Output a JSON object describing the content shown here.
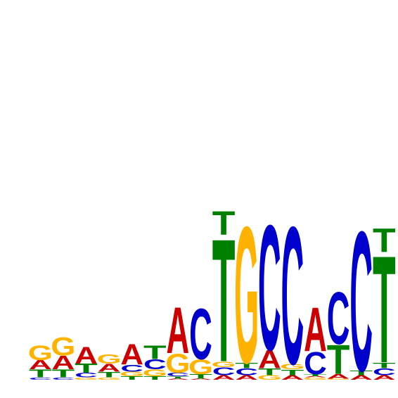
{
  "chart_data": {
    "type": "sequence-logo",
    "title": "",
    "xlabel": "",
    "ylabel": "",
    "ylim": [
      0,
      2
    ],
    "colors": {
      "A": "#CC0000",
      "C": "#0000CC",
      "G": "#FFB300",
      "T": "#008000"
    },
    "positions": [
      [
        {
          "b": "C",
          "h": 0.02
        },
        {
          "b": "T",
          "h": 0.07
        },
        {
          "b": "A",
          "h": 0.08
        },
        {
          "b": "G",
          "h": 0.13
        }
      ],
      [
        {
          "b": "C",
          "h": 0.02
        },
        {
          "b": "T",
          "h": 0.07
        },
        {
          "b": "A",
          "h": 0.12
        },
        {
          "b": "G",
          "h": 0.16
        }
      ],
      [
        {
          "b": "G",
          "h": 0.02
        },
        {
          "b": "C",
          "h": 0.04
        },
        {
          "b": "T",
          "h": 0.08
        },
        {
          "b": "A",
          "h": 0.15
        }
      ],
      [
        {
          "b": "G",
          "h": 0.02
        },
        {
          "b": "T",
          "h": 0.05
        },
        {
          "b": "A",
          "h": 0.07
        },
        {
          "b": "G",
          "h": 0.08
        }
      ],
      [
        {
          "b": "T",
          "h": 0.03
        },
        {
          "b": "G",
          "h": 0.04
        },
        {
          "b": "C",
          "h": 0.06
        },
        {
          "b": "A",
          "h": 0.18
        }
      ],
      [
        {
          "b": "T",
          "h": 0.03
        },
        {
          "b": "G",
          "h": 0.06
        },
        {
          "b": "C",
          "h": 0.09
        },
        {
          "b": "T",
          "h": 0.12
        }
      ],
      [
        {
          "b": "A",
          "h": 0.01
        },
        {
          "b": "T",
          "h": 0.02
        },
        {
          "b": "C",
          "h": 0.03
        },
        {
          "b": "G",
          "h": 0.17
        },
        {
          "b": "A",
          "h": 0.41
        }
      ],
      [
        {
          "b": "A",
          "h": 0.01
        },
        {
          "b": "T",
          "h": 0.04
        },
        {
          "b": "G",
          "h": 0.13
        },
        {
          "b": "C",
          "h": 0.45
        }
      ],
      [
        {
          "b": "A",
          "h": 0.04
        },
        {
          "b": "C",
          "h": 0.07
        },
        {
          "b": "G",
          "h": 0.05
        },
        {
          "b": "T",
          "h": 1.09
        },
        {
          "b": "T",
          "h": 0.21
        }
      ],
      [
        {
          "b": "A",
          "h": 0.04
        },
        {
          "b": "C",
          "h": 0.06
        },
        {
          "b": "T",
          "h": 0.05
        },
        {
          "b": "G",
          "h": 1.21
        }
      ],
      [
        {
          "b": "G",
          "h": 0.04
        },
        {
          "b": "T",
          "h": 0.06
        },
        {
          "b": "A",
          "h": 0.16
        },
        {
          "b": "C",
          "h": 1.11
        }
      ],
      [
        {
          "b": "A",
          "h": 0.04
        },
        {
          "b": "T",
          "h": 0.05
        },
        {
          "b": "G",
          "h": 0.05
        },
        {
          "b": "C",
          "h": 1.22
        }
      ],
      [
        {
          "b": "G",
          "h": 0.02
        },
        {
          "b": "A",
          "h": 0.01
        },
        {
          "b": "T",
          "h": 0.02
        },
        {
          "b": "C",
          "h": 0.2
        },
        {
          "b": "A",
          "h": 0.39
        }
      ],
      [
        {
          "b": "G",
          "h": 0.01
        },
        {
          "b": "A",
          "h": 0.04
        },
        {
          "b": "T",
          "h": 0.26
        },
        {
          "b": "C",
          "h": 0.46
        }
      ],
      [
        {
          "b": "A",
          "h": 0.04
        },
        {
          "b": "T",
          "h": 0.04
        },
        {
          "b": "C",
          "h": 1.24
        }
      ],
      [
        {
          "b": "A",
          "h": 0.04
        },
        {
          "b": "C",
          "h": 0.06
        },
        {
          "b": "T",
          "h": 0.05
        },
        {
          "b": "T",
          "h": 0.95
        },
        {
          "b": "T",
          "h": 0.21
        }
      ]
    ]
  }
}
